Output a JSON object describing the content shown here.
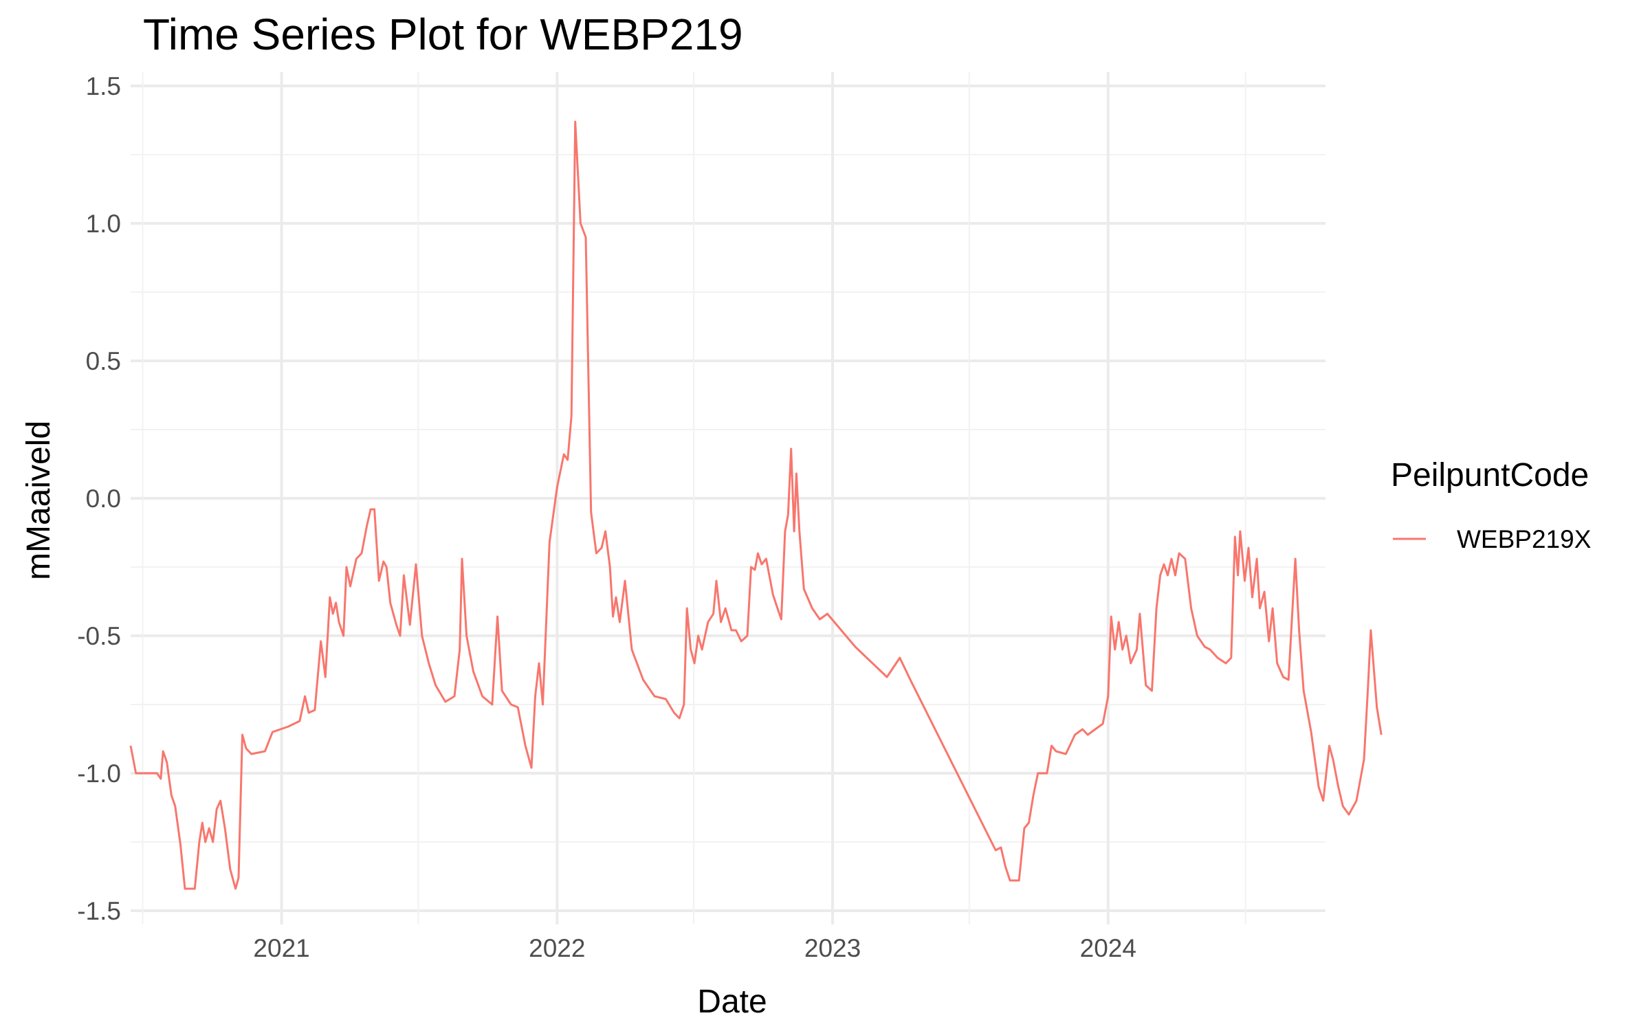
{
  "chart_data": {
    "type": "line",
    "title": "Time Series Plot for WEBP219",
    "xlabel": "Date",
    "ylabel": "mMaaiveld",
    "x_ticks": [
      "2021",
      "2022",
      "2023",
      "2024"
    ],
    "y_ticks": [
      "-1.5",
      "-1.0",
      "-0.5",
      "0.0",
      "0.5",
      "1.0",
      "1.5"
    ],
    "xlim": [
      "2020-06-15",
      "2024-10-15"
    ],
    "ylim": [
      -1.55,
      1.55
    ],
    "grid": true,
    "legend": {
      "title": "PeilpuntCode",
      "position": "right",
      "entries": [
        "WEBP219X"
      ]
    },
    "series": [
      {
        "name": "WEBP219X",
        "color": "#F8766D",
        "points": [
          [
            "2020-06-15",
            -0.9
          ],
          [
            "2020-06-22",
            -1.0
          ],
          [
            "2020-07-20",
            -1.0
          ],
          [
            "2020-07-25",
            -1.02
          ],
          [
            "2020-07-28",
            -0.92
          ],
          [
            "2020-08-02",
            -0.96
          ],
          [
            "2020-08-08",
            -1.08
          ],
          [
            "2020-08-13",
            -1.12
          ],
          [
            "2020-08-20",
            -1.26
          ],
          [
            "2020-08-26",
            -1.42
          ],
          [
            "2020-09-08",
            -1.42
          ],
          [
            "2020-09-14",
            -1.25
          ],
          [
            "2020-09-18",
            -1.18
          ],
          [
            "2020-09-22",
            -1.25
          ],
          [
            "2020-09-27",
            -1.2
          ],
          [
            "2020-10-02",
            -1.25
          ],
          [
            "2020-10-07",
            -1.13
          ],
          [
            "2020-10-12",
            -1.1
          ],
          [
            "2020-10-18",
            -1.2
          ],
          [
            "2020-10-25",
            -1.35
          ],
          [
            "2020-11-01",
            -1.42
          ],
          [
            "2020-11-05",
            -1.38
          ],
          [
            "2020-11-10",
            -0.86
          ],
          [
            "2020-11-15",
            -0.91
          ],
          [
            "2020-11-22",
            -0.93
          ],
          [
            "2020-12-10",
            -0.92
          ],
          [
            "2020-12-20",
            -0.85
          ],
          [
            "2021-01-10",
            -0.83
          ],
          [
            "2021-01-25",
            -0.81
          ],
          [
            "2021-02-01",
            -0.72
          ],
          [
            "2021-02-06",
            -0.78
          ],
          [
            "2021-02-14",
            -0.77
          ],
          [
            "2021-02-22",
            -0.52
          ],
          [
            "2021-02-28",
            -0.65
          ],
          [
            "2021-03-06",
            -0.36
          ],
          [
            "2021-03-10",
            -0.42
          ],
          [
            "2021-03-14",
            -0.38
          ],
          [
            "2021-03-18",
            -0.45
          ],
          [
            "2021-03-24",
            -0.5
          ],
          [
            "2021-03-28",
            -0.25
          ],
          [
            "2021-04-02",
            -0.32
          ],
          [
            "2021-04-10",
            -0.22
          ],
          [
            "2021-04-17",
            -0.2
          ],
          [
            "2021-04-24",
            -0.1
          ],
          [
            "2021-04-29",
            -0.04
          ],
          [
            "2021-05-04",
            -0.04
          ],
          [
            "2021-05-10",
            -0.3
          ],
          [
            "2021-05-16",
            -0.23
          ],
          [
            "2021-05-20",
            -0.25
          ],
          [
            "2021-05-25",
            -0.38
          ],
          [
            "2021-06-02",
            -0.46
          ],
          [
            "2021-06-07",
            -0.5
          ],
          [
            "2021-06-12",
            -0.28
          ],
          [
            "2021-06-20",
            -0.46
          ],
          [
            "2021-06-28",
            -0.24
          ],
          [
            "2021-07-06",
            -0.5
          ],
          [
            "2021-07-15",
            -0.6
          ],
          [
            "2021-07-24",
            -0.68
          ],
          [
            "2021-08-06",
            -0.74
          ],
          [
            "2021-08-18",
            -0.72
          ],
          [
            "2021-08-25",
            -0.55
          ],
          [
            "2021-08-28",
            -0.22
          ],
          [
            "2021-09-03",
            -0.5
          ],
          [
            "2021-09-12",
            -0.63
          ],
          [
            "2021-09-24",
            -0.72
          ],
          [
            "2021-10-07",
            -0.75
          ],
          [
            "2021-10-14",
            -0.43
          ],
          [
            "2021-10-20",
            -0.7
          ],
          [
            "2021-11-01",
            -0.75
          ],
          [
            "2021-11-10",
            -0.76
          ],
          [
            "2021-11-20",
            -0.9
          ],
          [
            "2021-11-28",
            -0.98
          ],
          [
            "2021-12-03",
            -0.72
          ],
          [
            "2021-12-08",
            -0.6
          ],
          [
            "2021-12-13",
            -0.75
          ],
          [
            "2021-12-18",
            -0.42
          ],
          [
            "2021-12-22",
            -0.16
          ],
          [
            "2022-01-01",
            0.04
          ],
          [
            "2022-01-10",
            0.16
          ],
          [
            "2022-01-15",
            0.14
          ],
          [
            "2022-01-20",
            0.3
          ],
          [
            "2022-01-25",
            1.37
          ],
          [
            "2022-02-01",
            1.0
          ],
          [
            "2022-02-08",
            0.95
          ],
          [
            "2022-02-15",
            -0.05
          ],
          [
            "2022-02-22",
            -0.2
          ],
          [
            "2022-03-01",
            -0.18
          ],
          [
            "2022-03-06",
            -0.12
          ],
          [
            "2022-03-12",
            -0.25
          ],
          [
            "2022-03-16",
            -0.43
          ],
          [
            "2022-03-20",
            -0.36
          ],
          [
            "2022-03-25",
            -0.45
          ],
          [
            "2022-04-01",
            -0.3
          ],
          [
            "2022-04-10",
            -0.55
          ],
          [
            "2022-04-25",
            -0.66
          ],
          [
            "2022-05-10",
            -0.72
          ],
          [
            "2022-05-25",
            -0.73
          ],
          [
            "2022-06-05",
            -0.78
          ],
          [
            "2022-06-12",
            -0.8
          ],
          [
            "2022-06-18",
            -0.75
          ],
          [
            "2022-06-22",
            -0.4
          ],
          [
            "2022-06-27",
            -0.55
          ],
          [
            "2022-07-02",
            -0.6
          ],
          [
            "2022-07-07",
            -0.5
          ],
          [
            "2022-07-12",
            -0.55
          ],
          [
            "2022-07-20",
            -0.45
          ],
          [
            "2022-07-27",
            -0.42
          ],
          [
            "2022-07-31",
            -0.3
          ],
          [
            "2022-08-06",
            -0.45
          ],
          [
            "2022-08-12",
            -0.4
          ],
          [
            "2022-08-20",
            -0.48
          ],
          [
            "2022-08-26",
            -0.48
          ],
          [
            "2022-09-02",
            -0.52
          ],
          [
            "2022-09-10",
            -0.5
          ],
          [
            "2022-09-15",
            -0.25
          ],
          [
            "2022-09-20",
            -0.26
          ],
          [
            "2022-09-24",
            -0.2
          ],
          [
            "2022-09-29",
            -0.24
          ],
          [
            "2022-10-05",
            -0.22
          ],
          [
            "2022-10-14",
            -0.35
          ],
          [
            "2022-10-20",
            -0.4
          ],
          [
            "2022-10-25",
            -0.44
          ],
          [
            "2022-10-30",
            -0.12
          ],
          [
            "2022-11-03",
            -0.06
          ],
          [
            "2022-11-07",
            0.18
          ],
          [
            "2022-11-11",
            -0.12
          ],
          [
            "2022-11-14",
            0.09
          ],
          [
            "2022-11-18",
            -0.12
          ],
          [
            "2022-11-24",
            -0.33
          ],
          [
            "2022-12-05",
            -0.4
          ],
          [
            "2022-12-15",
            -0.44
          ],
          [
            "2022-12-25",
            -0.42
          ],
          [
            "2023-01-31",
            -0.54
          ],
          [
            "2023-03-14",
            -0.65
          ],
          [
            "2023-03-31",
            -0.58
          ],
          [
            "2023-04-14",
            -0.66
          ],
          [
            "2023-08-05",
            -1.28
          ],
          [
            "2023-08-12",
            -1.27
          ],
          [
            "2023-08-18",
            -1.34
          ],
          [
            "2023-08-24",
            -1.39
          ],
          [
            "2023-09-05",
            -1.39
          ],
          [
            "2023-09-12",
            -1.2
          ],
          [
            "2023-09-18",
            -1.18
          ],
          [
            "2023-09-24",
            -1.08
          ],
          [
            "2023-09-30",
            -1.0
          ],
          [
            "2023-10-12",
            -1.0
          ],
          [
            "2023-10-18",
            -0.9
          ],
          [
            "2023-10-24",
            -0.92
          ],
          [
            "2023-11-06",
            -0.93
          ],
          [
            "2023-11-18",
            -0.86
          ],
          [
            "2023-11-28",
            -0.84
          ],
          [
            "2023-12-05",
            -0.86
          ],
          [
            "2023-12-15",
            -0.84
          ],
          [
            "2023-12-25",
            -0.82
          ],
          [
            "2024-01-01",
            -0.72
          ],
          [
            "2024-01-05",
            -0.43
          ],
          [
            "2024-01-10",
            -0.55
          ],
          [
            "2024-01-15",
            -0.45
          ],
          [
            "2024-01-20",
            -0.55
          ],
          [
            "2024-01-25",
            -0.5
          ],
          [
            "2024-01-31",
            -0.6
          ],
          [
            "2024-02-08",
            -0.55
          ],
          [
            "2024-02-12",
            -0.42
          ],
          [
            "2024-02-20",
            -0.68
          ],
          [
            "2024-02-28",
            -0.7
          ],
          [
            "2024-03-05",
            -0.4
          ],
          [
            "2024-03-10",
            -0.28
          ],
          [
            "2024-03-15",
            -0.24
          ],
          [
            "2024-03-20",
            -0.28
          ],
          [
            "2024-03-25",
            -0.22
          ],
          [
            "2024-03-30",
            -0.28
          ],
          [
            "2024-04-04",
            -0.2
          ],
          [
            "2024-04-12",
            -0.22
          ],
          [
            "2024-04-20",
            -0.4
          ],
          [
            "2024-04-28",
            -0.5
          ],
          [
            "2024-05-08",
            -0.54
          ],
          [
            "2024-05-15",
            -0.55
          ],
          [
            "2024-05-25",
            -0.58
          ],
          [
            "2024-06-05",
            -0.6
          ],
          [
            "2024-06-12",
            -0.58
          ],
          [
            "2024-06-17",
            -0.14
          ],
          [
            "2024-06-21",
            -0.28
          ],
          [
            "2024-06-24",
            -0.12
          ],
          [
            "2024-06-30",
            -0.3
          ],
          [
            "2024-07-05",
            -0.18
          ],
          [
            "2024-07-10",
            -0.36
          ],
          [
            "2024-07-16",
            -0.22
          ],
          [
            "2024-07-20",
            -0.4
          ],
          [
            "2024-07-26",
            -0.34
          ],
          [
            "2024-08-01",
            -0.52
          ],
          [
            "2024-08-06",
            -0.4
          ],
          [
            "2024-08-12",
            -0.6
          ],
          [
            "2024-08-20",
            -0.65
          ],
          [
            "2024-08-27",
            -0.66
          ],
          [
            "2024-09-05",
            -0.22
          ],
          [
            "2024-09-10",
            -0.48
          ],
          [
            "2024-09-16",
            -0.7
          ],
          [
            "2024-09-26",
            -0.85
          ],
          [
            "2024-10-06",
            -1.05
          ],
          [
            "2024-10-12",
            -1.1
          ],
          [
            "2024-10-20",
            -0.9
          ],
          [
            "2024-10-25",
            -0.95
          ],
          [
            "2024-11-01",
            -1.05
          ],
          [
            "2024-11-07",
            -1.12
          ],
          [
            "2024-11-15",
            -1.15
          ],
          [
            "2024-11-25",
            -1.1
          ],
          [
            "2024-12-05",
            -0.95
          ],
          [
            "2024-12-10",
            -0.7
          ],
          [
            "2024-12-14",
            -0.48
          ],
          [
            "2024-12-18",
            -0.62
          ],
          [
            "2024-12-22",
            -0.76
          ],
          [
            "2024-12-28",
            -0.86
          ]
        ]
      }
    ]
  }
}
